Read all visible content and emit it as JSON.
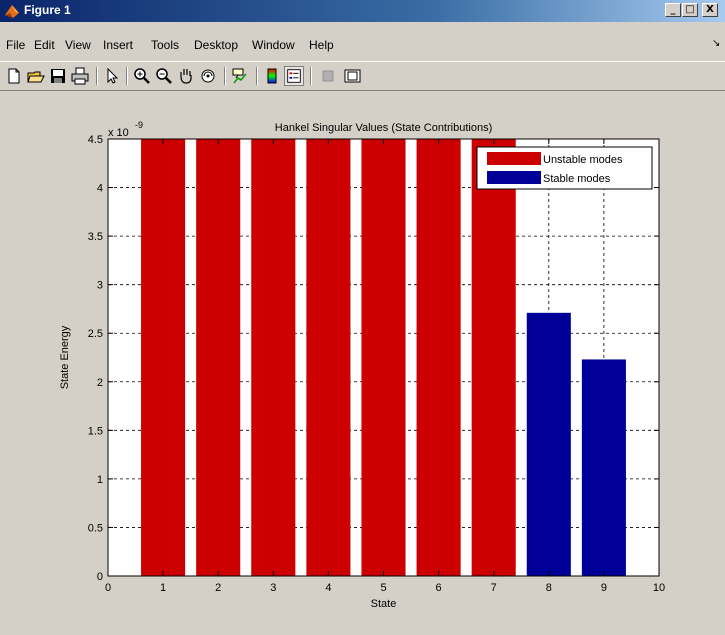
{
  "window": {
    "title": "Figure 1",
    "controls": {
      "minimize": "_",
      "maximize": "□",
      "close": "X"
    }
  },
  "menu": {
    "items": [
      "File",
      "Edit",
      "View",
      "Insert",
      "Tools",
      "Desktop",
      "Window",
      "Help"
    ],
    "overflow": "↘"
  },
  "toolbar": {
    "buttons": [
      "new-file-icon",
      "open-folder-icon",
      "save-icon",
      "print-icon",
      "pointer-icon",
      "zoom-in-icon",
      "zoom-out-icon",
      "pan-hand-icon",
      "rotate-3d-icon",
      "data-cursor-icon",
      "colorbar-icon",
      "legend-icon",
      "hide-plot-tools-icon",
      "show-plot-tools-icon"
    ]
  },
  "chart_data": {
    "type": "bar",
    "title": "Hankel Singular Values (State Contributions)",
    "xlabel": "State",
    "ylabel": "State Energy",
    "exponent_label": "x 10",
    "exponent_power": "-9",
    "xlim": [
      0,
      10
    ],
    "ylim": [
      0,
      4.5
    ],
    "xticks": [
      "0",
      "1",
      "2",
      "3",
      "4",
      "5",
      "6",
      "7",
      "8",
      "9",
      "10"
    ],
    "yticks": [
      "0",
      "0.5",
      "1",
      "1.5",
      "2",
      "2.5",
      "3",
      "3.5",
      "4",
      "4.5"
    ],
    "grid": true,
    "legend_position": "top-right",
    "series": [
      {
        "name": "Unstable modes",
        "color": "#cc0000",
        "x": [
          1,
          2,
          3,
          4,
          5,
          6,
          7
        ],
        "values": [
          4.5,
          4.5,
          4.5,
          4.5,
          4.5,
          4.5,
          4.5
        ]
      },
      {
        "name": "Stable modes",
        "color": "#000099",
        "x": [
          8,
          9
        ],
        "values": [
          2.71,
          2.23
        ]
      }
    ]
  }
}
